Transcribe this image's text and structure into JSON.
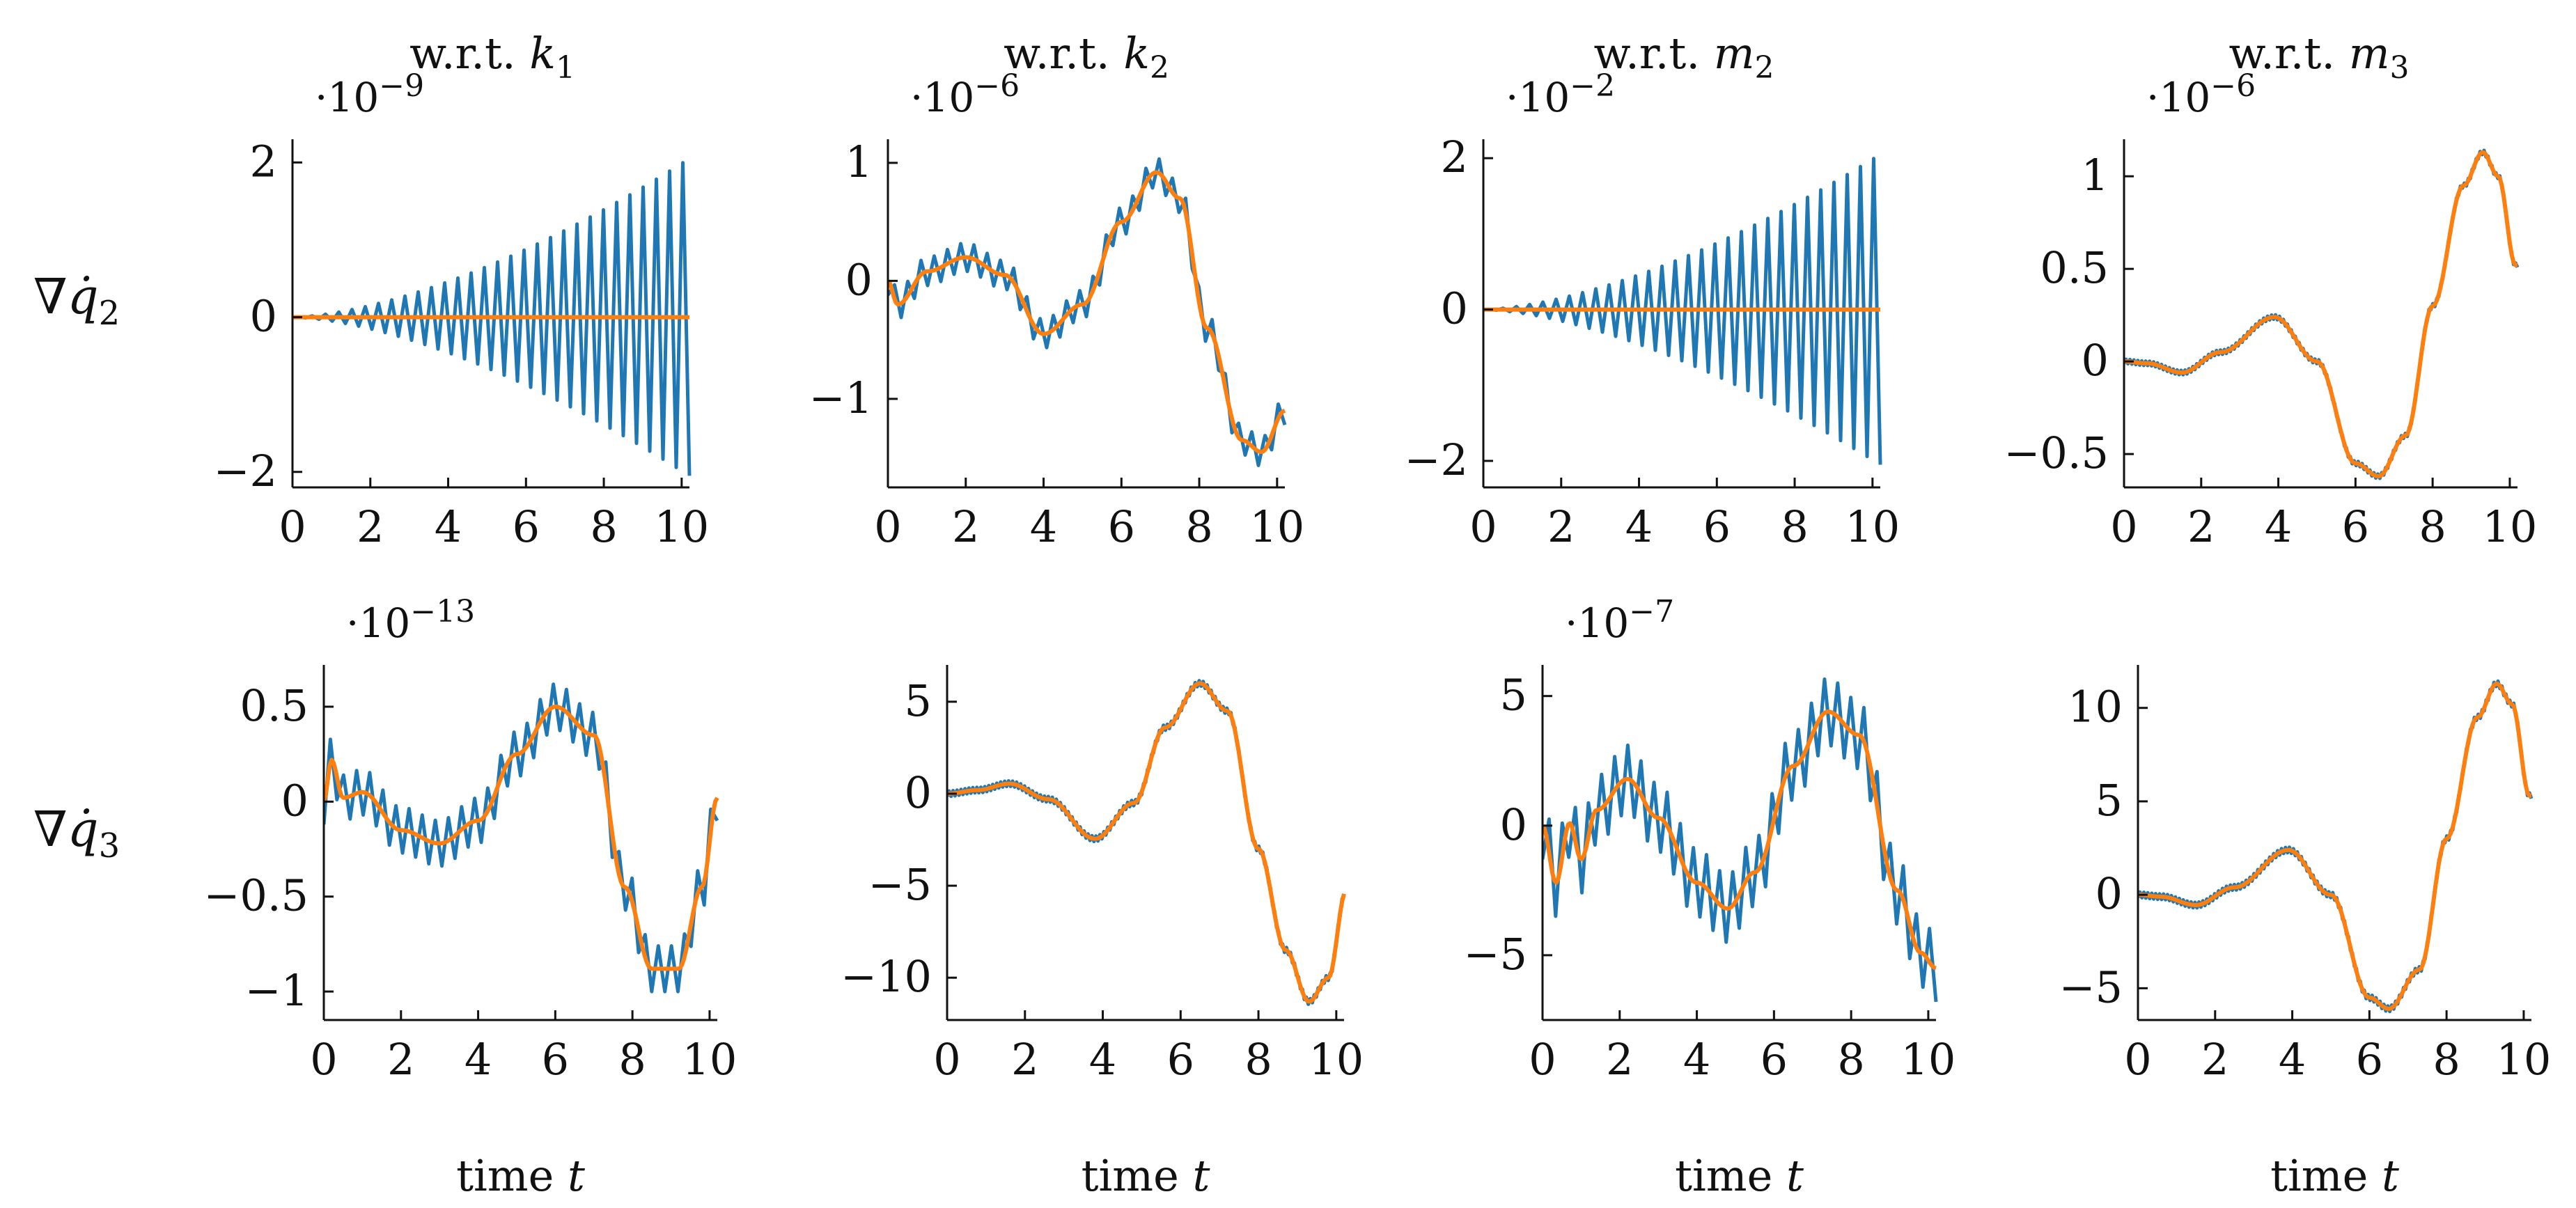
{
  "figure": {
    "xlabel_text": "time",
    "xlabel_var": "t",
    "column_titles": [
      {
        "prefix": "w.r.t. ",
        "var": "k",
        "sub": "1"
      },
      {
        "prefix": "w.r.t. ",
        "var": "k",
        "sub": "2"
      },
      {
        "prefix": "w.r.t. ",
        "var": "m",
        "sub": "2"
      },
      {
        "prefix": "w.r.t. ",
        "var": "m",
        "sub": "3"
      }
    ],
    "row_labels": [
      {
        "symbol": "∇",
        "var": "q̇",
        "sub": "2"
      },
      {
        "symbol": "∇",
        "var": "q̇",
        "sub": "3"
      }
    ],
    "colors": {
      "series_a": "#1f77b4",
      "series_b": "#ff7f0e",
      "axis": "#111111"
    }
  },
  "chart_data": [
    {
      "id": "r0c0",
      "type": "line",
      "row": 0,
      "col": 0,
      "scale_base": "·10",
      "scale_exp": "−9",
      "xlim": [
        0,
        10.2
      ],
      "xticks": [
        0,
        2,
        4,
        6,
        8,
        10
      ],
      "ylim": [
        -2.2,
        2.3
      ],
      "yticks": [
        {
          "v": 2,
          "t": "2"
        },
        {
          "v": 0,
          "t": "0"
        },
        {
          "v": -2,
          "t": "−2"
        }
      ],
      "xlabel_shown": false,
      "series": [
        {
          "name": "oscillating",
          "color": "#1f77b4",
          "gen": "zigzag_growing",
          "amp": 2.05,
          "n": 60
        },
        {
          "name": "smooth",
          "color": "#ff7f0e",
          "gen": "flat",
          "value": 0
        }
      ]
    },
    {
      "id": "r0c1",
      "type": "line",
      "row": 0,
      "col": 1,
      "scale_base": "·10",
      "scale_exp": "−6",
      "xlim": [
        0,
        10.2
      ],
      "xticks": [
        0,
        2,
        4,
        6,
        8,
        10
      ],
      "ylim": [
        -1.75,
        1.2
      ],
      "yticks": [
        {
          "v": 1,
          "t": "1"
        },
        {
          "v": 0,
          "t": "0"
        },
        {
          "v": -1,
          "t": "−1"
        }
      ],
      "xlabel_shown": false,
      "series": [
        {
          "name": "oscillating",
          "color": "#1f77b4",
          "gen": "zigzag_around",
          "amp": 0.12,
          "n": 60
        },
        {
          "name": "smooth",
          "color": "#ff7f0e",
          "gen": "interp",
          "points": [
            [
              0,
              0
            ],
            [
              0.25,
              -0.2
            ],
            [
              1,
              0.08
            ],
            [
              2,
              0.2
            ],
            [
              3,
              0.05
            ],
            [
              4,
              -0.45
            ],
            [
              5,
              -0.2
            ],
            [
              6,
              0.5
            ],
            [
              6.9,
              0.92
            ],
            [
              7.5,
              0.7
            ],
            [
              8.2,
              -0.4
            ],
            [
              9.1,
              -1.35
            ],
            [
              9.6,
              -1.45
            ],
            [
              10.2,
              -1.1
            ]
          ]
        }
      ]
    },
    {
      "id": "r0c2",
      "type": "line",
      "row": 0,
      "col": 2,
      "scale_base": "·10",
      "scale_exp": "−2",
      "xlim": [
        0,
        10.2
      ],
      "xticks": [
        0,
        2,
        4,
        6,
        8,
        10
      ],
      "ylim": [
        -2.35,
        2.25
      ],
      "yticks": [
        {
          "v": 2,
          "t": "2"
        },
        {
          "v": 0,
          "t": "0"
        },
        {
          "v": -2,
          "t": "−2"
        }
      ],
      "xlabel_shown": false,
      "series": [
        {
          "name": "oscillating",
          "color": "#1f77b4",
          "gen": "zigzag_growing",
          "amp": 2.05,
          "n": 60
        },
        {
          "name": "smooth",
          "color": "#ff7f0e",
          "gen": "flat",
          "value": 0
        }
      ]
    },
    {
      "id": "r0c3",
      "type": "line",
      "row": 0,
      "col": 3,
      "scale_base": "·10",
      "scale_exp": "−6",
      "xlim": [
        0,
        10.2
      ],
      "xticks": [
        0,
        2,
        4,
        6,
        8,
        10
      ],
      "ylim": [
        -0.68,
        1.2
      ],
      "yticks": [
        {
          "v": 1,
          "t": "1"
        },
        {
          "v": 0.5,
          "t": "0.5"
        },
        {
          "v": 0,
          "t": "0"
        },
        {
          "v": -0.5,
          "t": "−0.5"
        }
      ],
      "xlabel_shown": false,
      "series": [
        {
          "name": "oscillating",
          "color": "#1f77b4",
          "gen": "interp_offset",
          "offset": 0.012,
          "points": [
            [
              0,
              0
            ],
            [
              0.6,
              -0.01
            ],
            [
              1.5,
              -0.06
            ],
            [
              2.5,
              0.05
            ],
            [
              3.9,
              0.24
            ],
            [
              5,
              0.0
            ],
            [
              6,
              -0.55
            ],
            [
              6.6,
              -0.62
            ],
            [
              7.3,
              -0.4
            ],
            [
              8,
              0.3
            ],
            [
              8.8,
              0.95
            ],
            [
              9.3,
              1.13
            ],
            [
              9.7,
              1.0
            ],
            [
              10.15,
              0.52
            ]
          ]
        },
        {
          "name": "smooth",
          "color": "#ff7f0e",
          "gen": "interp",
          "points": [
            [
              0,
              0
            ],
            [
              0.6,
              -0.01
            ],
            [
              1.5,
              -0.06
            ],
            [
              2.5,
              0.05
            ],
            [
              3.9,
              0.24
            ],
            [
              5,
              0.0
            ],
            [
              6,
              -0.55
            ],
            [
              6.6,
              -0.62
            ],
            [
              7.3,
              -0.4
            ],
            [
              8,
              0.3
            ],
            [
              8.8,
              0.95
            ],
            [
              9.3,
              1.13
            ],
            [
              9.7,
              1.0
            ],
            [
              10.15,
              0.52
            ]
          ]
        }
      ]
    },
    {
      "id": "r1c0",
      "type": "line",
      "row": 1,
      "col": 0,
      "scale_base": "·10",
      "scale_exp": "−13",
      "xlim": [
        0,
        10.2
      ],
      "xticks": [
        0,
        2,
        4,
        6,
        8,
        10
      ],
      "ylim": [
        -1.15,
        0.72
      ],
      "yticks": [
        {
          "v": 0.5,
          "t": "0.5"
        },
        {
          "v": 0,
          "t": "0"
        },
        {
          "v": -0.5,
          "t": "−0.5"
        },
        {
          "v": -1,
          "t": "−1"
        }
      ],
      "xlabel_shown": true,
      "series": [
        {
          "name": "oscillating",
          "color": "#1f77b4",
          "gen": "zigzag_around",
          "amp": 0.12,
          "n": 60
        },
        {
          "name": "smooth",
          "color": "#ff7f0e",
          "gen": "interp",
          "points": [
            [
              0,
              0
            ],
            [
              0.2,
              0.22
            ],
            [
              0.5,
              0.02
            ],
            [
              1,
              0.05
            ],
            [
              2,
              -0.15
            ],
            [
              3,
              -0.22
            ],
            [
              4,
              -0.1
            ],
            [
              5,
              0.25
            ],
            [
              6,
              0.5
            ],
            [
              7,
              0.35
            ],
            [
              7.8,
              -0.45
            ],
            [
              8.5,
              -0.88
            ],
            [
              9.2,
              -0.88
            ],
            [
              9.8,
              -0.45
            ],
            [
              10.2,
              0.02
            ]
          ]
        }
      ]
    },
    {
      "id": "r1c1",
      "type": "line",
      "row": 1,
      "col": 1,
      "scale_base": "",
      "scale_exp": "",
      "xlim": [
        0,
        10.2
      ],
      "xticks": [
        0,
        2,
        4,
        6,
        8,
        10
      ],
      "ylim": [
        -12.3,
        7
      ],
      "yticks": [
        {
          "v": 5,
          "t": "5"
        },
        {
          "v": 0,
          "t": "0"
        },
        {
          "v": -5,
          "t": "−5"
        },
        {
          "v": -10,
          "t": "−10"
        }
      ],
      "xlabel_shown": true,
      "series": [
        {
          "name": "oscillating",
          "color": "#1f77b4",
          "gen": "interp_offset",
          "offset": 0.15,
          "points": [
            [
              0,
              0
            ],
            [
              0.8,
              0.2
            ],
            [
              1.6,
              0.55
            ],
            [
              2.6,
              -0.3
            ],
            [
              3.8,
              -2.45
            ],
            [
              4.8,
              -0.5
            ],
            [
              5.6,
              3.6
            ],
            [
              6.5,
              6.0
            ],
            [
              7.2,
              4.5
            ],
            [
              8,
              -3
            ],
            [
              8.7,
              -8.5
            ],
            [
              9.3,
              -11.3
            ],
            [
              9.8,
              -10
            ],
            [
              10.25,
              -5.3
            ]
          ]
        },
        {
          "name": "smooth",
          "color": "#ff7f0e",
          "gen": "interp",
          "points": [
            [
              0,
              0
            ],
            [
              0.8,
              0.2
            ],
            [
              1.6,
              0.55
            ],
            [
              2.6,
              -0.3
            ],
            [
              3.8,
              -2.45
            ],
            [
              4.8,
              -0.5
            ],
            [
              5.6,
              3.6
            ],
            [
              6.5,
              6.0
            ],
            [
              7.2,
              4.5
            ],
            [
              8,
              -3
            ],
            [
              8.7,
              -8.5
            ],
            [
              9.3,
              -11.3
            ],
            [
              9.8,
              -10
            ],
            [
              10.25,
              -5.3
            ]
          ]
        }
      ]
    },
    {
      "id": "r1c2",
      "type": "line",
      "row": 1,
      "col": 2,
      "scale_base": "·10",
      "scale_exp": "−7",
      "xlim": [
        0,
        10.2
      ],
      "xticks": [
        0,
        2,
        4,
        6,
        8,
        10
      ],
      "ylim": [
        -7.5,
        6.2
      ],
      "yticks": [
        {
          "v": 5,
          "t": "5"
        },
        {
          "v": 0,
          "t": "0"
        },
        {
          "v": -5,
          "t": "−5"
        }
      ],
      "xlabel_shown": true,
      "series": [
        {
          "name": "oscillating",
          "color": "#1f77b4",
          "gen": "zigzag_around",
          "amp": 1.3,
          "n": 60
        },
        {
          "name": "smooth",
          "color": "#ff7f0e",
          "gen": "interp",
          "points": [
            [
              0,
              0
            ],
            [
              0.35,
              -2.2
            ],
            [
              0.7,
              0.1
            ],
            [
              1.0,
              -1.3
            ],
            [
              1.4,
              0.6
            ],
            [
              2.2,
              1.8
            ],
            [
              3,
              0.3
            ],
            [
              4,
              -2.2
            ],
            [
              4.8,
              -3.2
            ],
            [
              5.5,
              -1.8
            ],
            [
              6.5,
              2.3
            ],
            [
              7.4,
              4.4
            ],
            [
              8.2,
              3.5
            ],
            [
              9.2,
              -2.5
            ],
            [
              9.8,
              -4.9
            ],
            [
              10.2,
              -5.5
            ]
          ]
        }
      ]
    },
    {
      "id": "r1c3",
      "type": "line",
      "row": 1,
      "col": 3,
      "scale_base": "",
      "scale_exp": "",
      "xlim": [
        0,
        10.2
      ],
      "xticks": [
        0,
        2,
        4,
        6,
        8,
        10
      ],
      "ylim": [
        -6.7,
        12.3
      ],
      "yticks": [
        {
          "v": 10,
          "t": "10"
        },
        {
          "v": 5,
          "t": "5"
        },
        {
          "v": 0,
          "t": "0"
        },
        {
          "v": -5,
          "t": "−5"
        }
      ],
      "xlabel_shown": true,
      "series": [
        {
          "name": "oscillating",
          "color": "#1f77b4",
          "gen": "interp_offset",
          "offset": 0.15,
          "points": [
            [
              0,
              0
            ],
            [
              0.6,
              -0.1
            ],
            [
              1.5,
              -0.55
            ],
            [
              2.5,
              0.4
            ],
            [
              3.9,
              2.4
            ],
            [
              5,
              0.0
            ],
            [
              6,
              -5.5
            ],
            [
              6.5,
              -6.1
            ],
            [
              7.3,
              -4
            ],
            [
              8,
              3
            ],
            [
              8.8,
              9.5
            ],
            [
              9.3,
              11.3
            ],
            [
              9.7,
              10.2
            ],
            [
              10.15,
              5.3
            ]
          ]
        },
        {
          "name": "smooth",
          "color": "#ff7f0e",
          "gen": "interp",
          "points": [
            [
              0,
              0
            ],
            [
              0.6,
              -0.1
            ],
            [
              1.5,
              -0.55
            ],
            [
              2.5,
              0.4
            ],
            [
              3.9,
              2.4
            ],
            [
              5,
              0.0
            ],
            [
              6,
              -5.5
            ],
            [
              6.5,
              -6.1
            ],
            [
              7.3,
              -4
            ],
            [
              8,
              3
            ],
            [
              8.8,
              9.5
            ],
            [
              9.3,
              11.3
            ],
            [
              9.7,
              10.2
            ],
            [
              10.15,
              5.3
            ]
          ]
        }
      ]
    }
  ]
}
